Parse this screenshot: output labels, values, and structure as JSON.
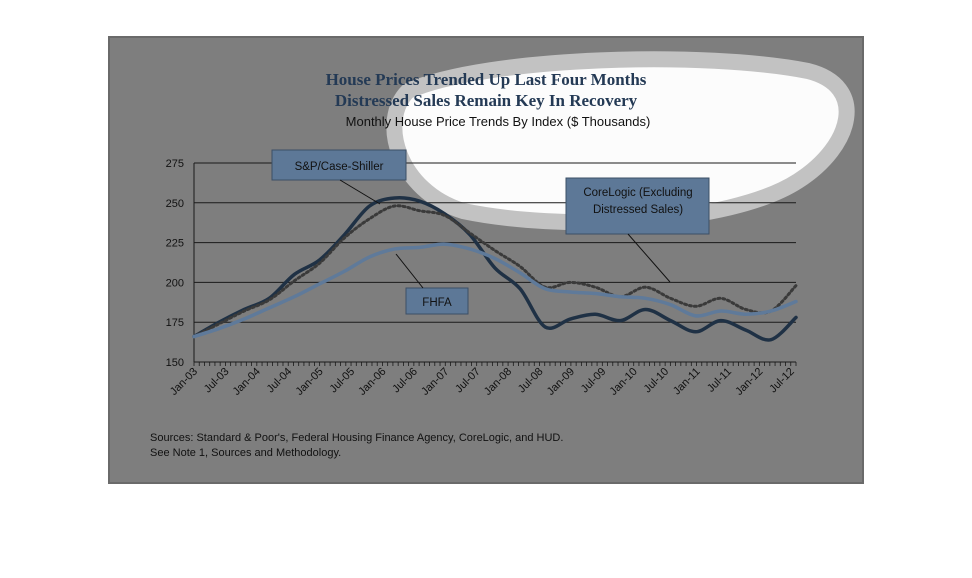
{
  "chart_data": {
    "type": "line",
    "title_line1": "House Prices Trended Up Last Four Months",
    "title_line2": "Distressed Sales Remain Key In Recovery",
    "subtitle": "Monthly House Price Trends By Index ($ Thousands)",
    "xlabel": "",
    "ylabel": "",
    "ylim": [
      150,
      275
    ],
    "yticks": [
      "150",
      "175",
      "200",
      "225",
      "250",
      "275"
    ],
    "x_tick_labels": [
      "Jan-03",
      "Jul-03",
      "Jan-04",
      "Jul-04",
      "Jan-05",
      "Jul-05",
      "Jan-06",
      "Jul-06",
      "Jan-07",
      "Jul-07",
      "Jan-08",
      "Jul-08",
      "Jan-09",
      "Jul-09",
      "Jan-10",
      "Jul-10",
      "Jan-11",
      "Jul-11",
      "Jan-12",
      "Jul-12"
    ],
    "grid": "horizontal",
    "series": [
      {
        "name": "S&P/Case-Shiller",
        "color": "#1f3145",
        "style": "solid",
        "values": [
          166,
          175,
          183,
          190,
          205,
          214,
          230,
          248,
          253,
          251,
          243,
          230,
          209,
          196,
          172,
          177,
          180,
          176,
          183,
          176,
          169,
          176,
          170,
          164,
          178
        ]
      },
      {
        "name": "CoreLogic (Excluding Distressed Sales)",
        "color": "#3a3a3a",
        "style": "dotted",
        "values": [
          166,
          174,
          182,
          189,
          201,
          212,
          228,
          240,
          248,
          245,
          242,
          231,
          220,
          210,
          197,
          200,
          197,
          191,
          197,
          190,
          185,
          190,
          183,
          182,
          198
        ]
      },
      {
        "name": "FHFA",
        "color": "#5f7a9a",
        "style": "solid",
        "values": [
          166,
          171,
          177,
          184,
          191,
          199,
          207,
          216,
          221,
          222,
          224,
          221,
          215,
          206,
          196,
          194,
          193,
          191,
          190,
          186,
          179,
          182,
          180,
          182,
          188
        ]
      }
    ],
    "labels": {
      "case_shiller": "S&P/Case-Shiller",
      "corelogic_line1": "CoreLogic (Excluding",
      "corelogic_line2": "Distressed Sales)",
      "fhfa": "FHFA"
    },
    "notes": {
      "sources": "Sources:  Standard & Poor's, Federal Housing Finance Agency, CoreLogic, and HUD.",
      "methodology": "See Note 1, Sources and Methodology."
    },
    "colors": {
      "panel": "#7e7e7e",
      "highlight": "#ffffff",
      "title_dark": "#243a55",
      "title_light": "#7fa7cf"
    }
  }
}
